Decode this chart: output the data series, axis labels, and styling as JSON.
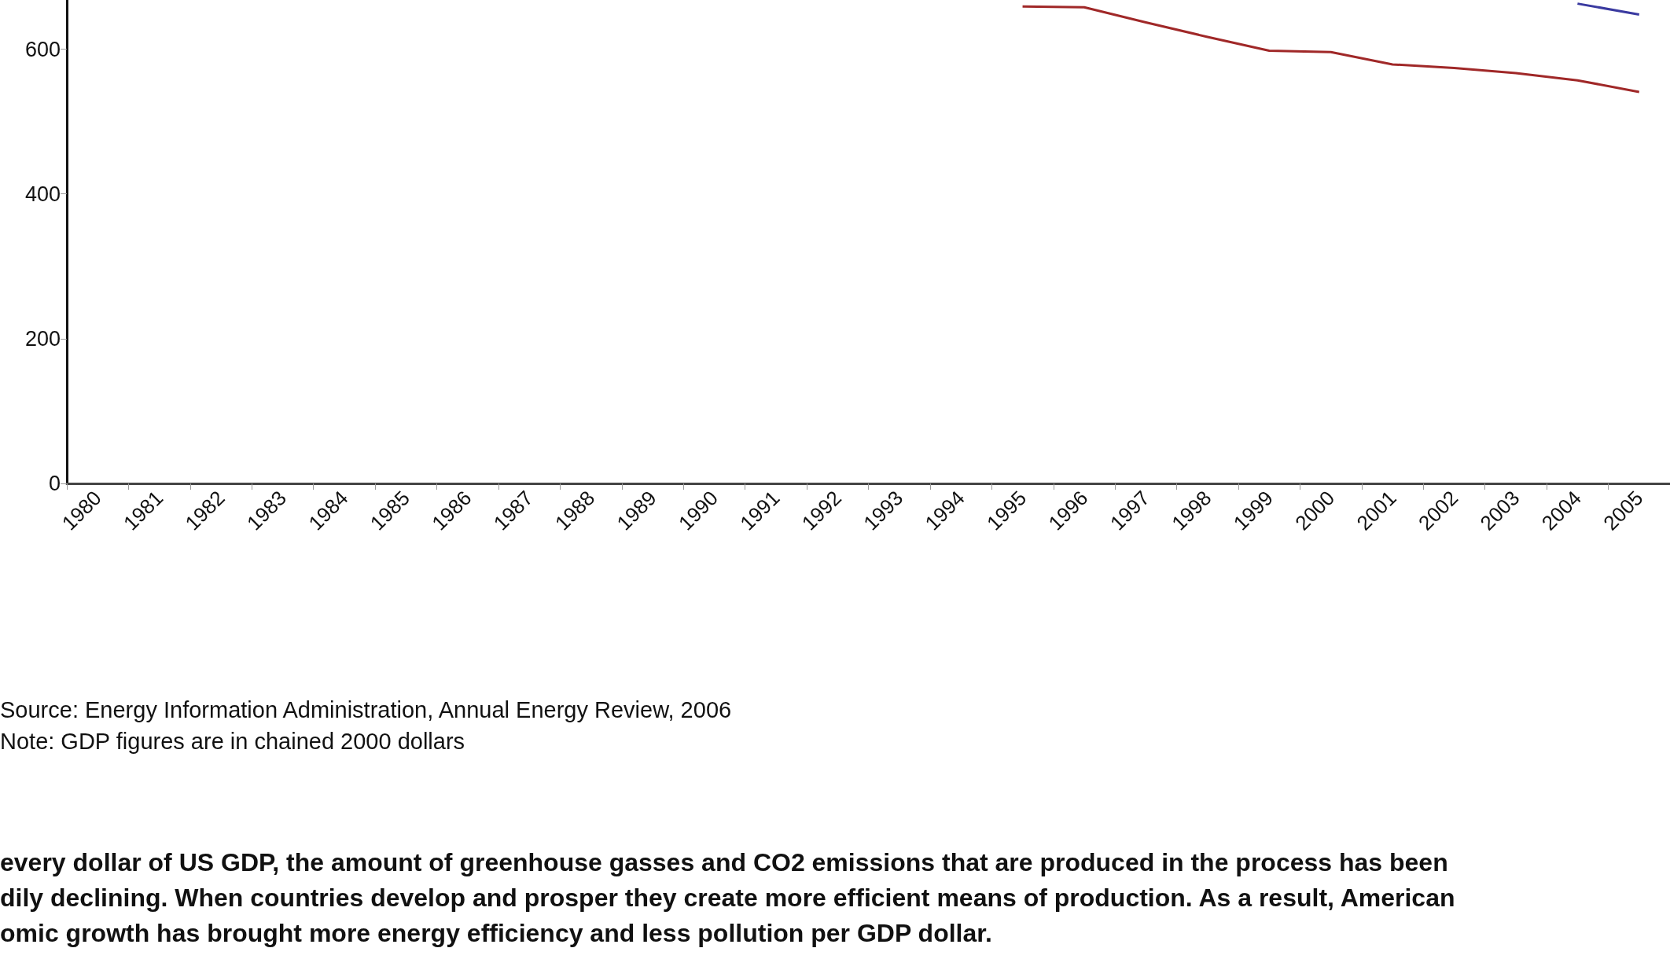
{
  "chart_data": {
    "type": "line",
    "categories": [
      "1980",
      "1981",
      "1982",
      "1983",
      "1984",
      "1985",
      "1986",
      "1987",
      "1988",
      "1989",
      "1990",
      "1991",
      "1992",
      "1993",
      "1994",
      "1995",
      "1996",
      "1997",
      "1998",
      "1999",
      "2000",
      "2001",
      "2002",
      "2003",
      "2004",
      "2005"
    ],
    "series": [
      {
        "color": "#a02828",
        "values": [
          null,
          null,
          null,
          null,
          null,
          null,
          null,
          null,
          null,
          null,
          null,
          null,
          null,
          null,
          null,
          659,
          658,
          637,
          617,
          598,
          596,
          579,
          574,
          567,
          557,
          541
        ]
      },
      {
        "color": "#3a3aa0",
        "values": [
          null,
          null,
          null,
          null,
          null,
          null,
          null,
          null,
          null,
          null,
          null,
          null,
          null,
          null,
          null,
          null,
          null,
          null,
          null,
          null,
          null,
          null,
          null,
          null,
          663,
          648
        ]
      }
    ],
    "ylim": [
      0,
      668
    ],
    "yticks": [
      0,
      200,
      400,
      600
    ],
    "grid": false,
    "marker": "none",
    "line_style": "solid",
    "annotations": [
      "Source: Energy Information Administration, Annual Energy Review, 2006",
      "Note: GDP figures are in chained 2000 dollars",
      "every dollar of US GDP, the amount of greenhouse gasses and CO2 emissions that are produced in the process has been\ndily declining. When countries develop and prosper they create more efficient means of production. As a result, American\nomic growth has brought more energy efficiency and less pollution per GDP dollar."
    ]
  }
}
